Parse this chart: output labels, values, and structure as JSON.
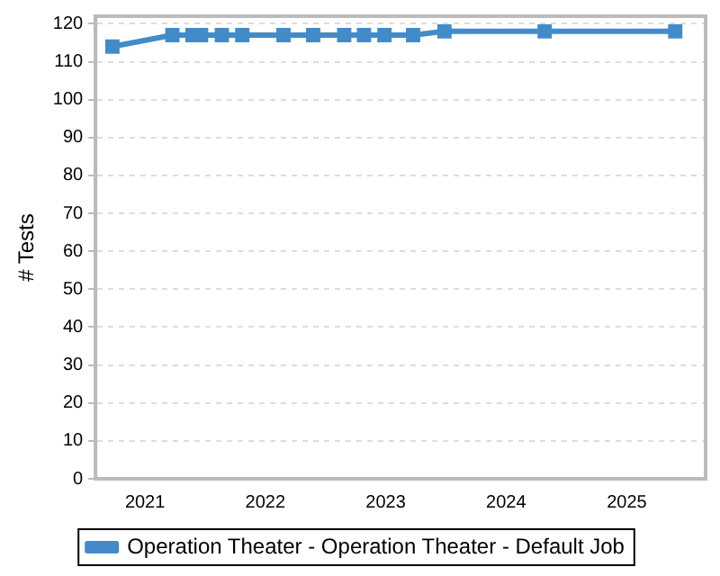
{
  "chart_data": {
    "type": "line",
    "ylabel": "# Tests",
    "x": [
      "2020-09-24",
      "2021-03-25",
      "2021-05-25",
      "2021-06-20",
      "2021-08-22",
      "2021-10-23",
      "2022-02-25",
      "2022-05-26",
      "2022-08-28",
      "2022-10-27",
      "2022-12-28",
      "2023-03-25",
      "2023-06-28",
      "2024-04-27",
      "2025-05-28"
    ],
    "series": [
      {
        "name": "Operation Theater - Operation Theater - Default Job",
        "color": "#438bc8",
        "values": [
          114,
          117,
          117,
          117,
          117,
          117,
          117,
          117,
          117,
          117,
          117,
          117,
          118,
          118,
          118
        ]
      }
    ],
    "xlim": [
      "2020-08-04",
      "2025-08-28"
    ],
    "xticks": [
      {
        "value": "2021-01-01",
        "label": "2021"
      },
      {
        "value": "2022-01-01",
        "label": "2022"
      },
      {
        "value": "2023-01-01",
        "label": "2023"
      },
      {
        "value": "2024-01-01",
        "label": "2024"
      },
      {
        "value": "2025-01-01",
        "label": "2025"
      }
    ],
    "ylim": [
      0,
      122
    ],
    "yticks": [
      0,
      10,
      20,
      30,
      40,
      50,
      60,
      70,
      80,
      90,
      100,
      110,
      120
    ],
    "grid": "y",
    "legend": "bottom",
    "marker": "square",
    "line_style": "solid"
  }
}
